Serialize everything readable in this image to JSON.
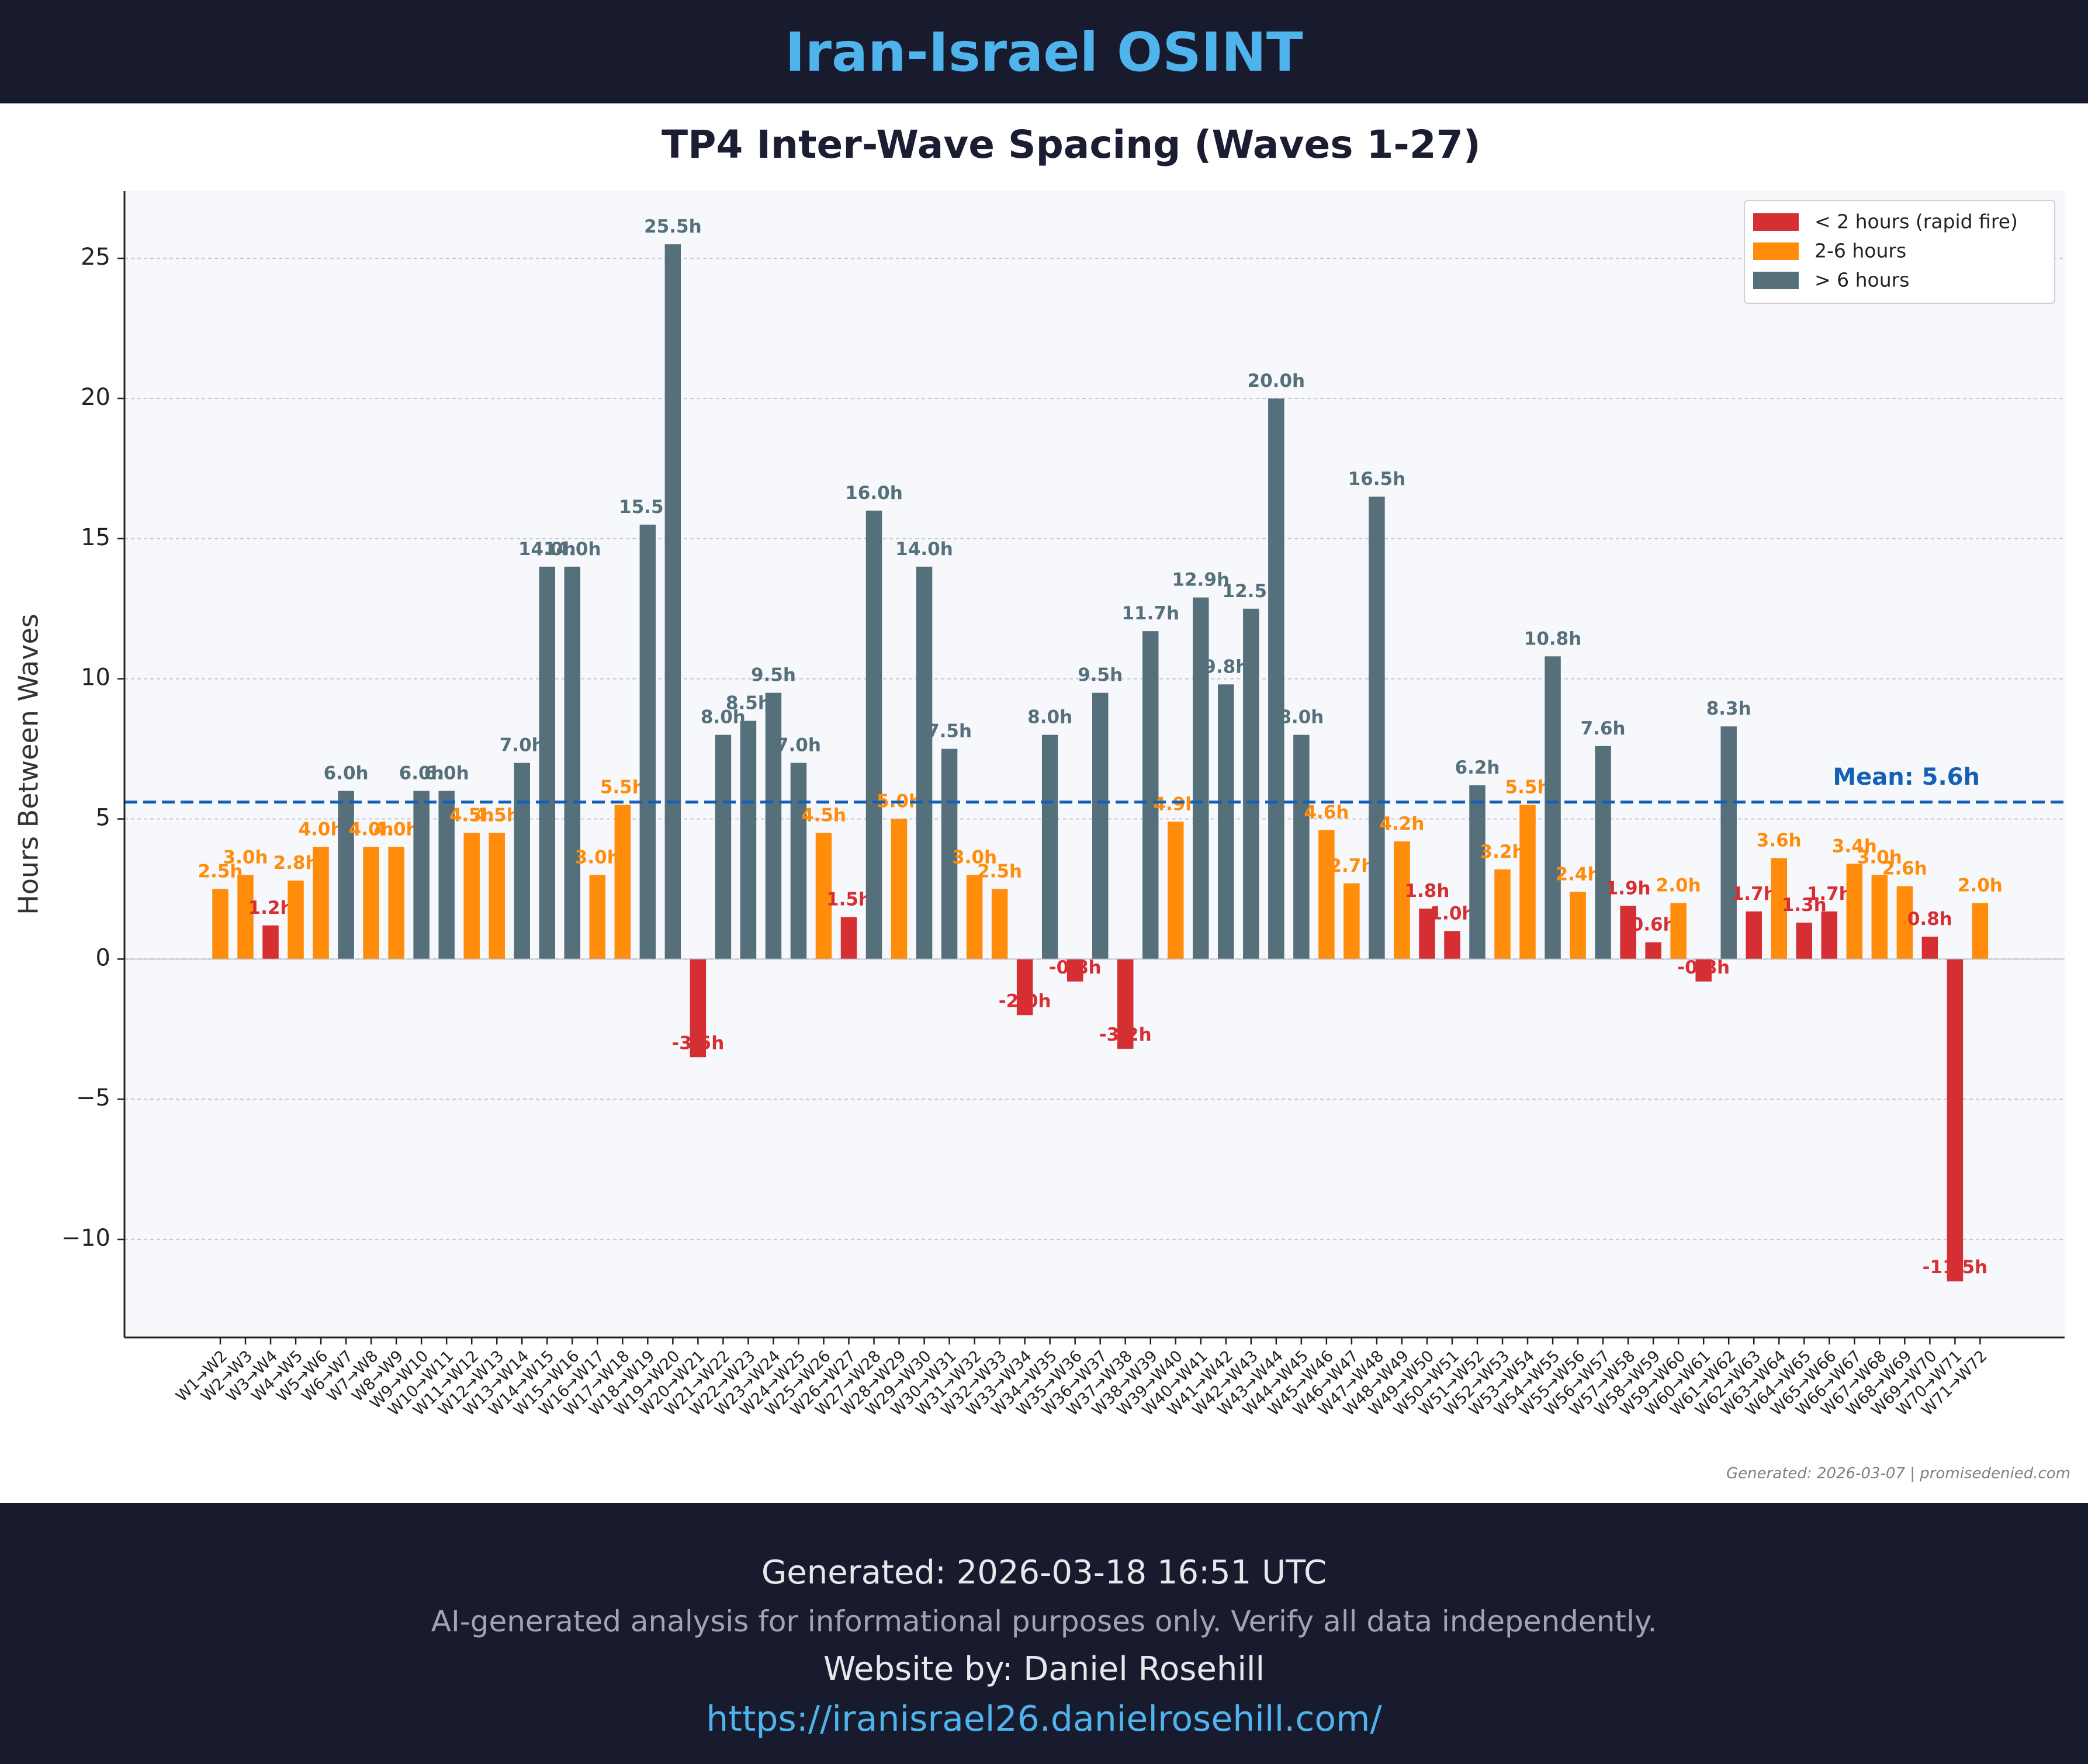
{
  "header": {
    "site_title": "Iran-Israel OSINT"
  },
  "colors": {
    "rapid": "#d62f33",
    "mid": "#ff8c0a",
    "long": "#56707b",
    "mean": "#1560b5",
    "plot_bg": "#f7f8fc",
    "title": "#1b1d33"
  },
  "chart_data": {
    "type": "bar",
    "title": "TP4 Inter-Wave Spacing (Waves 1-27)",
    "xlabel": "",
    "ylabel": "Hours Between Waves",
    "ylim": [
      -13.5,
      27.4
    ],
    "yticks": [
      {
        "value": 25,
        "label": "25"
      },
      {
        "value": 20,
        "label": "20"
      },
      {
        "value": 15,
        "label": "15"
      },
      {
        "value": 10,
        "label": "10"
      },
      {
        "value": 5,
        "label": "5"
      },
      {
        "value": 0,
        "label": "0"
      },
      {
        "value": -5,
        "label": "−5"
      },
      {
        "value": -10,
        "label": "−10"
      }
    ],
    "grid": "horizontal dashed",
    "legend_position": "top-right",
    "legend": [
      {
        "key": "rapid",
        "label": "< 2 hours (rapid fire)"
      },
      {
        "key": "mid",
        "label": "2-6 hours"
      },
      {
        "key": "long",
        "label": "> 6 hours"
      }
    ],
    "mean": {
      "value": 5.6,
      "label": "Mean: 5.6h"
    },
    "categories": [
      "W1→W2",
      "W2→W3",
      "W3→W4",
      "W4→W5",
      "W5→W6",
      "W6→W7",
      "W7→W8",
      "W8→W9",
      "W9→W10",
      "W10→W11",
      "W11→W12",
      "W12→W13",
      "W13→W14",
      "W14→W15",
      "W15→W16",
      "W16→W17",
      "W17→W18",
      "W18→W19",
      "W19→W20",
      "W20→W21",
      "W21→W22",
      "W22→W23",
      "W23→W24",
      "W24→W25",
      "W25→W26",
      "W26→W27",
      "W27→W28",
      "W28→W29",
      "W29→W30",
      "W30→W31",
      "W31→W32",
      "W32→W33",
      "W33→W34",
      "W34→W35",
      "W35→W36",
      "W36→W37",
      "W37→W38",
      "W38→W39",
      "W39→W40",
      "W40→W41",
      "W41→W42",
      "W42→W43",
      "W43→W44",
      "W44→W45",
      "W45→W46",
      "W46→W47",
      "W47→W48",
      "W48→W49",
      "W49→W50",
      "W50→W51",
      "W51→W52",
      "W52→W53",
      "W53→W54",
      "W54→W55",
      "W55→W56",
      "W56→W57",
      "W57→W58",
      "W58→W59",
      "W59→W60",
      "W60→W61",
      "W61→W62",
      "W62→W63",
      "W63→W64",
      "W64→W65",
      "W65→W66",
      "W66→W67",
      "W67→W68",
      "W68→W69",
      "W69→W70",
      "W70→W71",
      "W71→W72"
    ],
    "values": [
      2.5,
      3.0,
      1.2,
      2.8,
      4.0,
      6.0,
      4.0,
      4.0,
      6.0,
      6.0,
      4.5,
      4.5,
      7.0,
      14.0,
      14.0,
      3.0,
      5.5,
      15.5,
      25.5,
      -3.5,
      8.0,
      8.5,
      9.5,
      7.0,
      4.5,
      1.5,
      16.0,
      5.0,
      14.0,
      7.5,
      3.0,
      2.5,
      -2.0,
      8.0,
      -0.8,
      9.5,
      -3.2,
      11.7,
      4.9,
      12.9,
      9.8,
      12.5,
      20.0,
      8.0,
      4.6,
      2.7,
      16.5,
      4.2,
      1.8,
      1.0,
      6.2,
      3.2,
      5.5,
      10.8,
      2.4,
      7.6,
      1.9,
      0.6,
      2.0,
      -0.8,
      8.3,
      1.7,
      3.6,
      1.3,
      1.7,
      3.4,
      3.0,
      2.6,
      0.8,
      -11.5,
      2.0
    ],
    "data_labels": [
      "2.5h",
      "3.0h",
      "1.2h",
      "2.8h",
      "4.0h",
      "6.0h",
      "4.0h",
      "4.0h",
      "6.0h",
      "6.0h",
      "4.5h",
      "4.5h",
      "7.0h",
      "14.0h",
      "14.0h",
      "3.0h",
      "5.5h",
      "15.5h",
      "25.5h",
      "-3.5h",
      "8.0h",
      "8.5h",
      "9.5h",
      "7.0h",
      "4.5h",
      "1.5h",
      "16.0h",
      "5.0h",
      "14.0h",
      "7.5h",
      "3.0h",
      "2.5h",
      "-2.0h",
      "8.0h",
      "-0.8h",
      "9.5h",
      "-3.2h",
      "11.7h",
      "4.9h",
      "12.9h",
      "9.8h",
      "12.5h",
      "20.0h",
      "8.0h",
      "4.6h",
      "2.7h",
      "16.5h",
      "4.2h",
      "1.8h",
      "1.0h",
      "6.2h",
      "3.2h",
      "5.5h",
      "10.8h",
      "2.4h",
      "7.6h",
      "1.9h",
      "0.6h",
      "2.0h",
      "-0.8h",
      "8.3h",
      "1.7h",
      "3.6h",
      "1.3h",
      "1.7h",
      "3.4h",
      "3.0h",
      "2.6h",
      "0.8h",
      "-11.5h",
      "2.0h"
    ],
    "color_keys": [
      "mid",
      "mid",
      "rapid",
      "mid",
      "mid",
      "long",
      "mid",
      "mid",
      "long",
      "long",
      "mid",
      "mid",
      "long",
      "long",
      "long",
      "mid",
      "mid",
      "long",
      "long",
      "rapid",
      "long",
      "long",
      "long",
      "long",
      "mid",
      "rapid",
      "long",
      "mid",
      "long",
      "long",
      "mid",
      "mid",
      "rapid",
      "long",
      "rapid",
      "long",
      "rapid",
      "long",
      "mid",
      "long",
      "long",
      "long",
      "long",
      "long",
      "mid",
      "mid",
      "long",
      "mid",
      "rapid",
      "rapid",
      "long",
      "mid",
      "mid",
      "long",
      "mid",
      "long",
      "rapid",
      "rapid",
      "mid",
      "rapid",
      "long",
      "rapid",
      "mid",
      "rapid",
      "rapid",
      "mid",
      "mid",
      "mid",
      "rapid",
      "rapid",
      "mid"
    ],
    "watermark": "Generated: 2026-03-07 | promisedenied.com"
  },
  "footer": {
    "generated": "Generated: 2026-03-18 16:51 UTC",
    "disclaimer": "AI-generated analysis for informational purposes only. Verify all data independently.",
    "credit": "Website by: Daniel Rosehill",
    "url": "https://iranisrael26.danielrosehill.com/"
  }
}
